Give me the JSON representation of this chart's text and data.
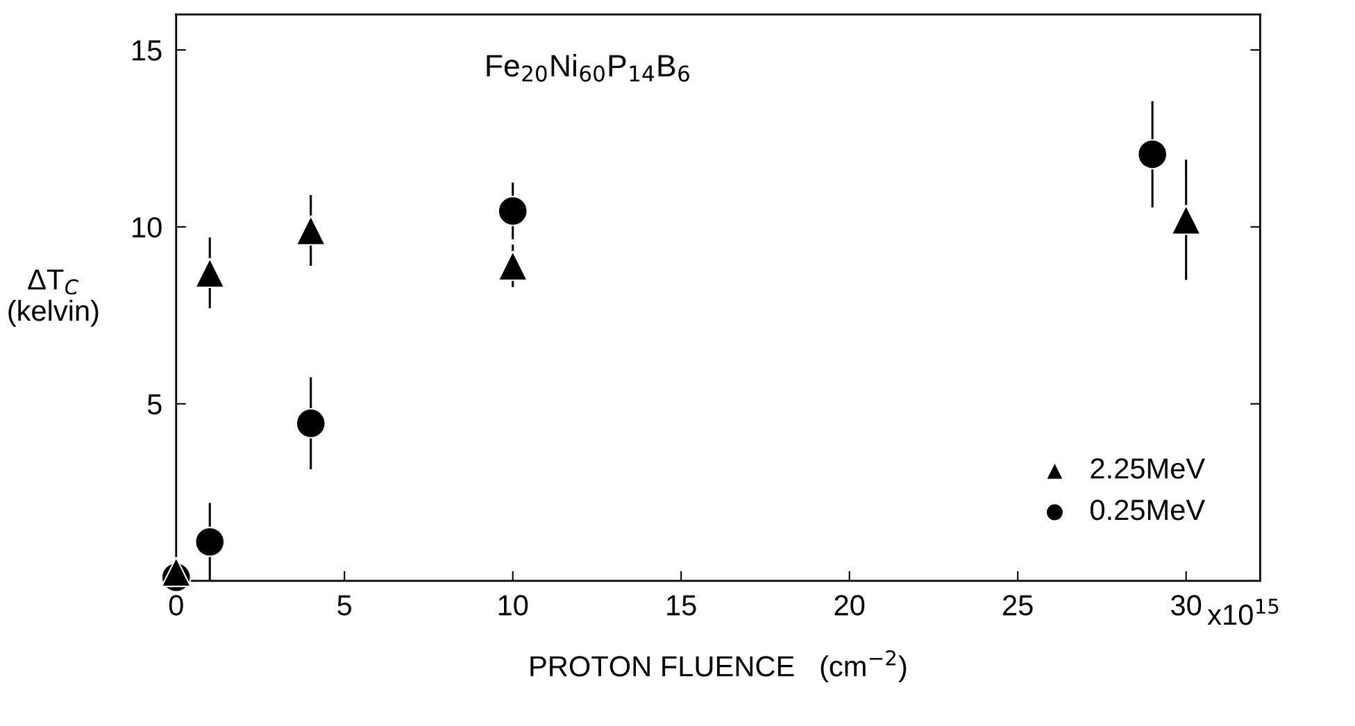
{
  "chart_data": {
    "type": "scatter",
    "xlabel": "PROTON FLUENCE   (cm$^{−2}$)",
    "ylabel": "ΔT$_{C}$\n(kelvin)",
    "annotations": [
      "Fe$_{20}$Ni$_{60}$P$_{14}$B$_{6}$",
      "x10$^{15}$"
    ],
    "xlim": [
      0,
      32.2
    ],
    "ylim": [
      0,
      16
    ],
    "xticks": [
      0,
      5,
      10,
      15,
      20,
      25,
      30
    ],
    "yticks": [
      5,
      10,
      15
    ],
    "legend": "bottom right",
    "grid": false,
    "series": [
      {
        "name": "2.25MeV",
        "color": "#000000",
        "marker": "triangle",
        "x": [
          0,
          1,
          4,
          10,
          30
        ],
        "values": [
          0.25,
          8.7,
          9.9,
          8.9,
          10.2
        ],
        "errors": [
          null,
          1.0,
          1.0,
          0.6,
          1.7
        ]
      },
      {
        "name": "0.25MeV",
        "color": "#000000",
        "marker": "circle",
        "x": [
          0,
          1,
          4,
          10,
          29
        ],
        "values": [
          0.1,
          1.1,
          4.45,
          10.45,
          12.05
        ],
        "errors": [
          null,
          1.1,
          1.3,
          0.8,
          1.5
        ]
      }
    ]
  }
}
